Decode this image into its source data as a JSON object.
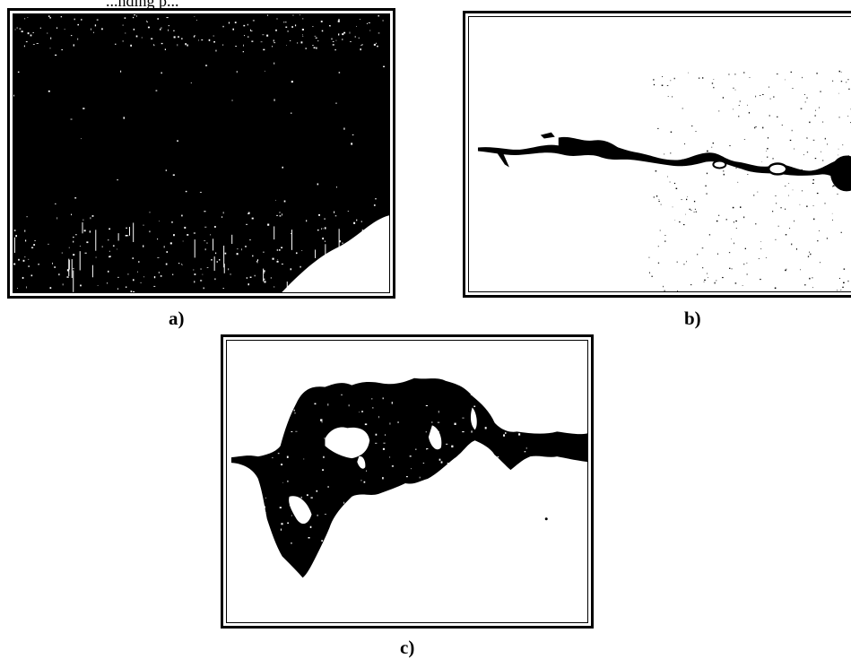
{
  "header_text": "...nding p...",
  "panels": [
    {
      "id": "a",
      "caption": "a)",
      "content": "black-fill-micrograph"
    },
    {
      "id": "b",
      "caption": "b)",
      "content": "thin-crack-micrograph"
    },
    {
      "id": "c",
      "caption": "c)",
      "content": "blob-crack-micrograph"
    }
  ],
  "colors": {
    "ink": "#000000",
    "paper": "#ffffff"
  }
}
